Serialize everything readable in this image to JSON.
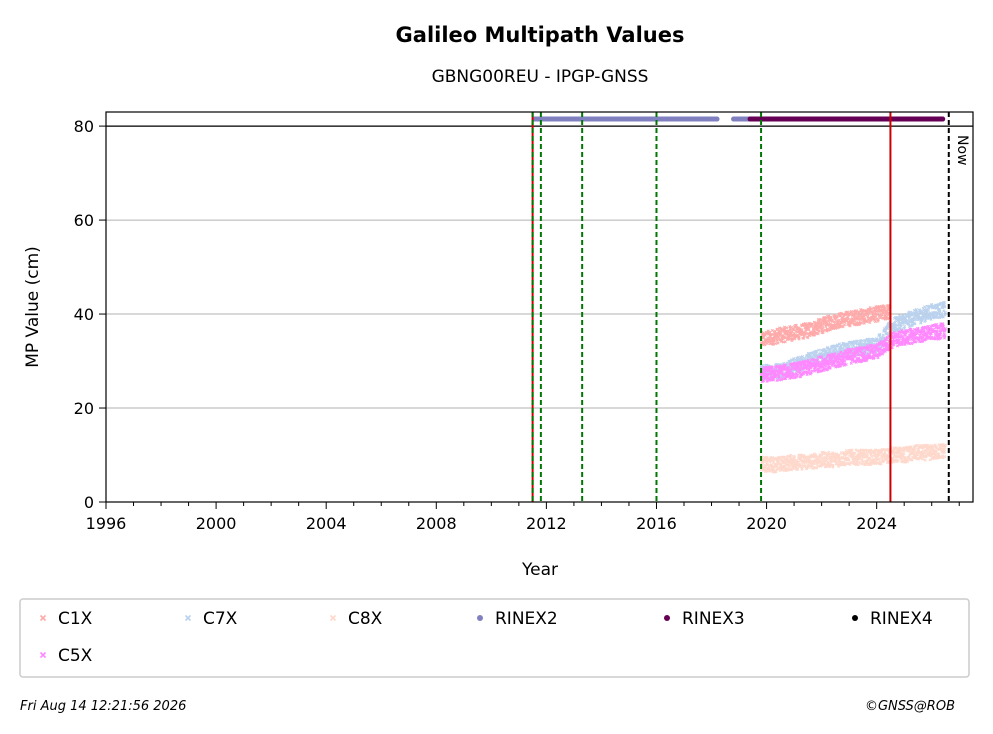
{
  "chart_data": {
    "type": "scatter",
    "title": "Galileo Multipath Values",
    "subtitle": "GBNG00REU - IPGP-GNSS",
    "xlabel": "Year",
    "ylabel": "MP Value (cm)",
    "xlim": [
      1996,
      2027.5
    ],
    "ylim": [
      0,
      83
    ],
    "xticks": [
      1996,
      2000,
      2004,
      2008,
      2012,
      2016,
      2020,
      2024
    ],
    "xtick_labels": [
      "1996",
      "2000",
      "2004",
      "2008",
      "2012",
      "2016",
      "2020",
      "2024"
    ],
    "yticks": [
      0,
      20,
      40,
      60,
      80
    ],
    "ytick_labels": [
      "0",
      "20",
      "40",
      "60",
      "80"
    ],
    "grid": "horizontal",
    "now_label": "Now",
    "now_x": 2026.62,
    "series": [
      {
        "name": "C1X",
        "color": "#ffaaaa",
        "marker": "x",
        "x": [
          2019.8,
          2020.5,
          2021.0,
          2021.5,
          2022.0,
          2022.5,
          2023.0,
          2023.5,
          2024.0,
          2024.5
        ],
        "y": [
          34.5,
          35.5,
          36.0,
          36.5,
          37.5,
          38.5,
          39.0,
          39.5,
          40.0,
          40.5
        ]
      },
      {
        "name": "C7X",
        "color": "#bbd2ee",
        "marker": "x",
        "x": [
          2019.8,
          2020.5,
          2021.0,
          2021.5,
          2022.0,
          2022.5,
          2023.0,
          2023.5,
          2024.0,
          2024.6,
          2025.0,
          2025.5,
          2026.0,
          2026.5
        ],
        "y": [
          27.5,
          28.0,
          29.0,
          30.0,
          31.0,
          32.0,
          32.5,
          33.0,
          33.5,
          37.5,
          38.5,
          39.5,
          40.5,
          41.0
        ]
      },
      {
        "name": "C8X",
        "color": "#ffd8cc",
        "marker": "x",
        "x": [
          2019.8,
          2020.5,
          2021.0,
          2021.5,
          2022.0,
          2022.5,
          2023.0,
          2023.5,
          2024.0,
          2024.5,
          2025.0,
          2025.5,
          2026.0,
          2026.5
        ],
        "y": [
          8.0,
          8.0,
          8.5,
          8.5,
          9.0,
          9.0,
          9.5,
          9.5,
          9.5,
          10.0,
          10.0,
          10.5,
          10.5,
          11.0
        ]
      },
      {
        "name": "C5X",
        "color": "#ff88ff",
        "marker": "x",
        "x": [
          2019.8,
          2020.5,
          2021.0,
          2021.5,
          2022.0,
          2022.5,
          2023.0,
          2023.5,
          2024.0,
          2024.6,
          2025.0,
          2025.5,
          2026.0,
          2026.5
        ],
        "y": [
          27.0,
          27.5,
          28.0,
          28.5,
          29.5,
          30.0,
          31.0,
          31.5,
          32.0,
          34.5,
          35.0,
          35.5,
          36.0,
          36.5
        ]
      }
    ],
    "rinex_bars": [
      {
        "name": "RINEX2",
        "color": "#8080c0",
        "ranges": [
          [
            2011.55,
            2018.2
          ],
          [
            2018.8,
            2019.5
          ]
        ],
        "y": 81.5
      },
      {
        "name": "RINEX3",
        "color": "#660055",
        "ranges": [
          [
            2019.4,
            2026.4
          ]
        ],
        "y": 81.5
      },
      {
        "name": "RINEX4",
        "color": "#000000",
        "ranges": [],
        "y": 81.5
      }
    ],
    "event_lines": [
      {
        "x": 2011.5,
        "color": "#cc0000",
        "style": "solid"
      },
      {
        "x": 2011.5,
        "color": "#007700",
        "style": "dashed"
      },
      {
        "x": 2011.8,
        "color": "#007700",
        "style": "dashed"
      },
      {
        "x": 2013.3,
        "color": "#007700",
        "style": "dashed"
      },
      {
        "x": 2016.0,
        "color": "#007700",
        "style": "dashed"
      },
      {
        "x": 2019.8,
        "color": "#007700",
        "style": "dashed"
      },
      {
        "x": 2024.5,
        "color": "#cc0000",
        "style": "solid"
      }
    ],
    "legend": {
      "placement": "bottom",
      "entries": [
        {
          "label": "C1X",
          "color": "#ffaaaa",
          "marker": "x"
        },
        {
          "label": "C7X",
          "color": "#bbd2ee",
          "marker": "x"
        },
        {
          "label": "C8X",
          "color": "#ffd8cc",
          "marker": "x"
        },
        {
          "label": "RINEX2",
          "color": "#8080c0",
          "marker": "dot"
        },
        {
          "label": "RINEX3",
          "color": "#660055",
          "marker": "dot"
        },
        {
          "label": "RINEX4",
          "color": "#000000",
          "marker": "dot"
        },
        {
          "label": "C5X",
          "color": "#ff88ff",
          "marker": "x"
        }
      ]
    }
  },
  "footer": {
    "timestamp": "Fri Aug 14 12:21:56 2026",
    "copyright": "©GNSS@ROB"
  }
}
